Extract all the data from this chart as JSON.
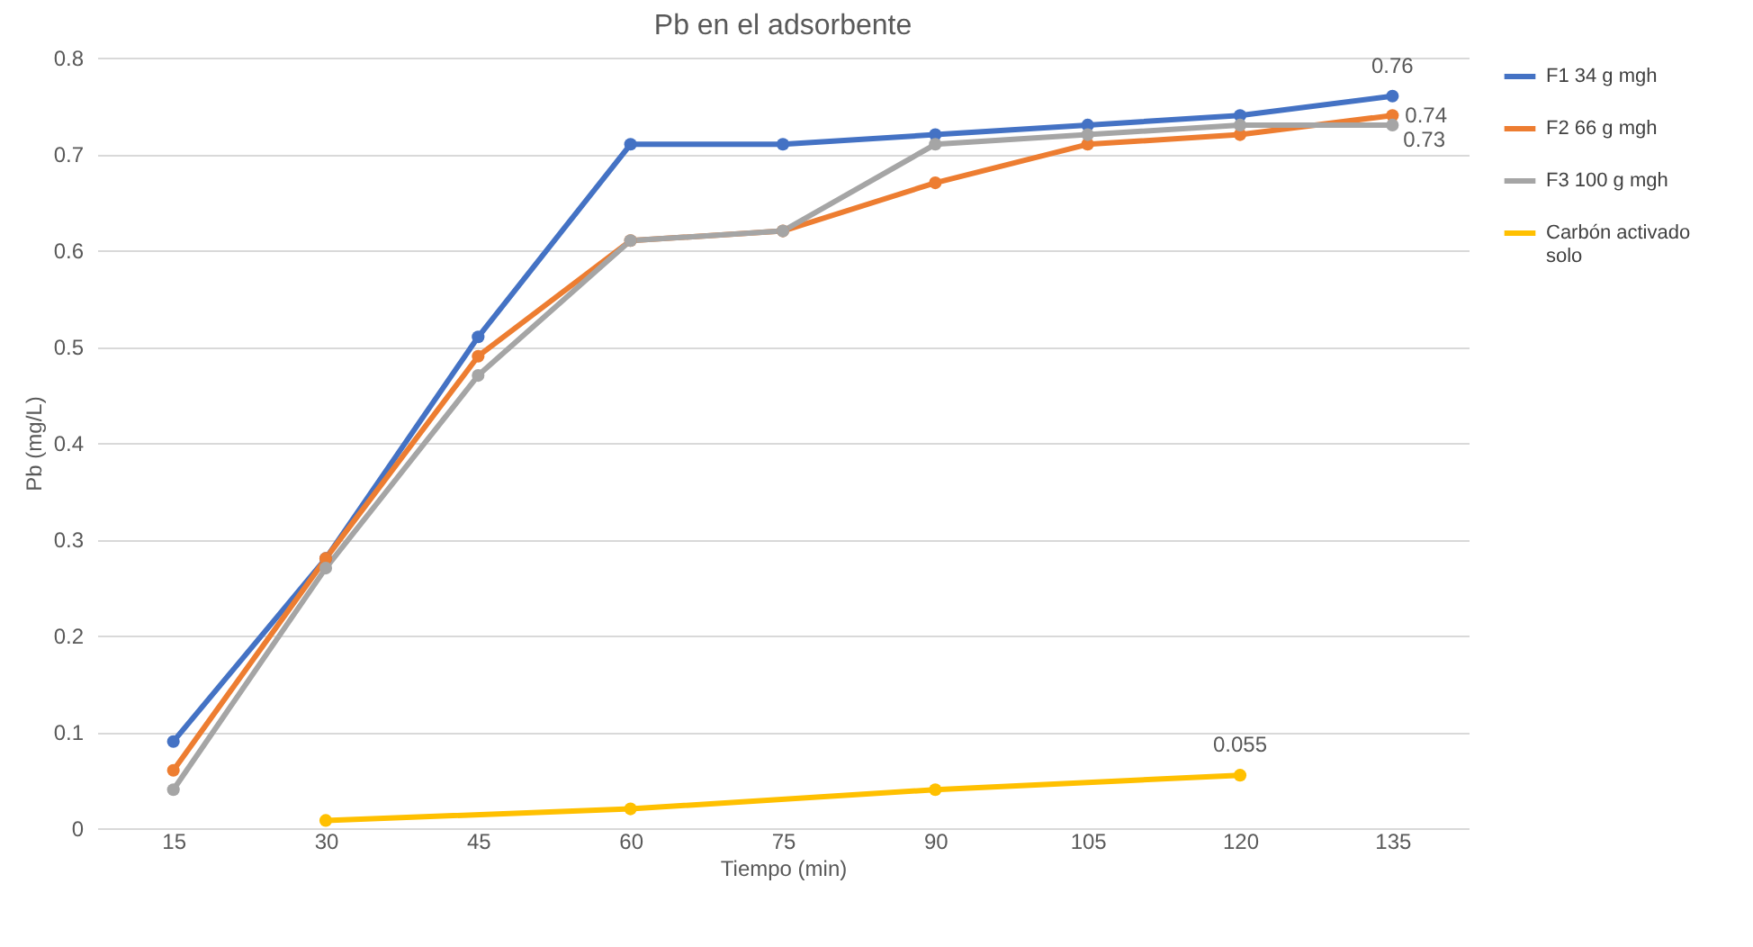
{
  "chart_data": {
    "type": "line",
    "title": "Pb en el adsorbente",
    "xlabel": "Tiempo (min)",
    "ylabel": "Pb (mg/L)",
    "categories": [
      "15",
      "30",
      "45",
      "60",
      "75",
      "90",
      "105",
      "120",
      "135"
    ],
    "series": [
      {
        "name": "F1 34 g mgh",
        "color": "#4472c4",
        "values": [
          0.09,
          0.28,
          0.51,
          0.71,
          0.71,
          0.72,
          0.73,
          0.74,
          0.76
        ],
        "value_labels": [
          null,
          null,
          null,
          null,
          null,
          null,
          null,
          null,
          "0.76"
        ]
      },
      {
        "name": "F2 66 g mgh",
        "color": "#ed7d31",
        "values": [
          0.06,
          0.28,
          0.49,
          0.61,
          0.62,
          0.67,
          0.71,
          0.72,
          0.74
        ],
        "value_labels": [
          null,
          null,
          null,
          null,
          null,
          null,
          null,
          null,
          "0.74"
        ]
      },
      {
        "name": "F3 100 g mgh",
        "color": "#a5a5a5",
        "values": [
          0.04,
          0.27,
          0.47,
          0.61,
          0.62,
          0.71,
          0.72,
          0.73,
          0.73
        ],
        "value_labels": [
          null,
          null,
          null,
          null,
          null,
          null,
          null,
          null,
          "0.73"
        ]
      },
      {
        "name": "Carbón activado solo",
        "color": "#ffc000",
        "values": [
          null,
          0.008,
          null,
          0.02,
          null,
          0.04,
          null,
          0.055,
          null
        ],
        "value_labels": [
          null,
          null,
          null,
          null,
          null,
          null,
          null,
          "0.055",
          null
        ]
      }
    ],
    "ylim": [
      0,
      0.8
    ],
    "yticks": [
      0,
      0.1,
      0.2,
      0.3,
      0.4,
      0.5,
      0.6,
      0.7,
      0.8
    ],
    "grid": "y",
    "legend": "right",
    "marker": "circle",
    "line_style": "solid"
  }
}
